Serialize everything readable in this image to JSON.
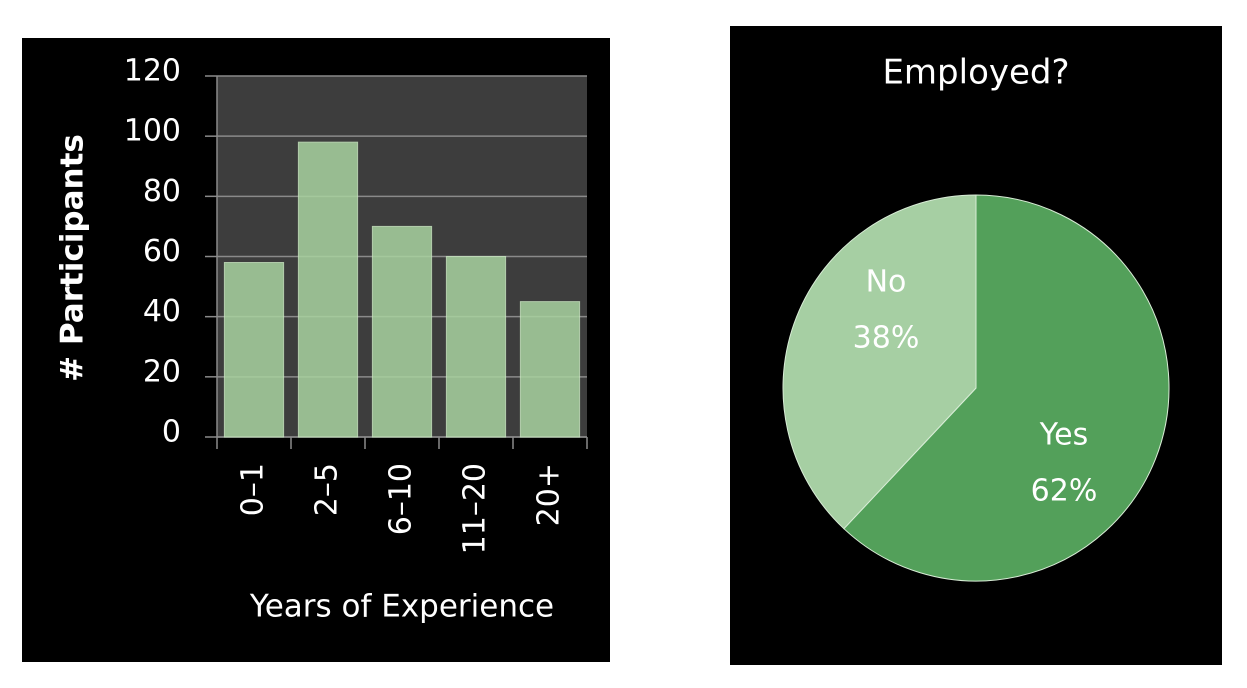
{
  "chart_data": [
    {
      "type": "bar",
      "x_label": "Years of Experience",
      "y_label": "# Participants",
      "categories": [
        "0–1",
        "2–5",
        "6–10",
        "11–20",
        "20+"
      ],
      "values": [
        58,
        98,
        70,
        60,
        45
      ],
      "color": "#a9d3a0",
      "ylim": [
        0,
        120
      ],
      "yticks": [
        0,
        20,
        40,
        60,
        80,
        100,
        120
      ],
      "grid": true
    },
    {
      "type": "pie",
      "title": "Employed?",
      "categories": [
        "Yes",
        "No"
      ],
      "values": [
        62,
        38
      ],
      "value_labels": [
        "62%",
        "38%"
      ],
      "colors": [
        "#53a05a",
        "#a6cfa3"
      ]
    }
  ]
}
